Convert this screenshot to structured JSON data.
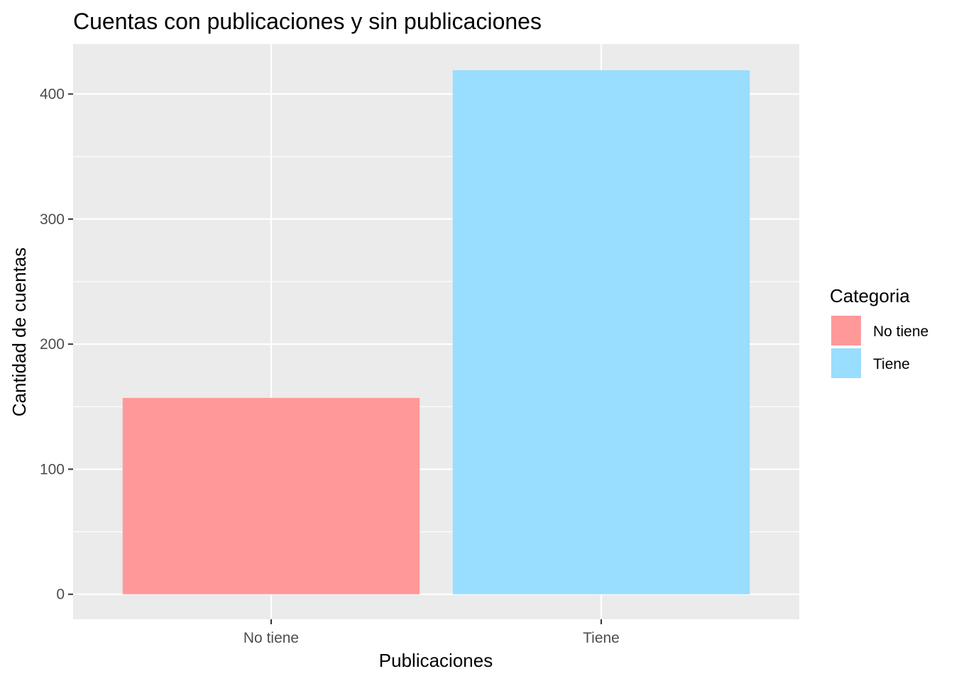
{
  "chart_data": {
    "type": "bar",
    "title": "Cuentas con publicaciones y sin publicaciones",
    "xlabel": "Publicaciones",
    "ylabel": "Cantidad de cuentas",
    "categories": [
      "No tiene",
      "Tiene"
    ],
    "values": [
      157,
      419
    ],
    "colors": [
      "#FF9999",
      "#99DDFF"
    ],
    "ylim": [
      -20,
      440
    ],
    "yticks": [
      0,
      100,
      200,
      300,
      400
    ],
    "ytick_labels": [
      "0",
      "100",
      "200",
      "300",
      "400"
    ],
    "grid": true,
    "panel_background": "#EBEBEB",
    "legend": {
      "title": "Categoria",
      "position": "right",
      "items": [
        {
          "label": "No tiene",
          "color": "#FF9999"
        },
        {
          "label": "Tiene",
          "color": "#99DDFF"
        }
      ]
    }
  }
}
